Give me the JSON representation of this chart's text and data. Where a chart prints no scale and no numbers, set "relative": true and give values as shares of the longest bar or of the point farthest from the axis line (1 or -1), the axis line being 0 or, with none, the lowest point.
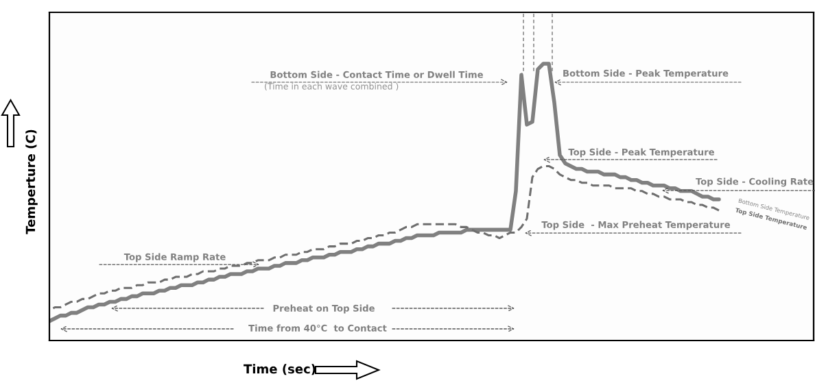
{
  "chart_data": {
    "type": "line",
    "relative": true,
    "xlabel": "Time (sec)",
    "ylabel": "Temperture (C)",
    "categories": [
      null,
      null,
      null,
      null,
      null,
      null,
      null,
      null,
      null,
      null,
      null,
      null,
      null,
      null,
      null,
      null,
      null,
      null,
      null,
      null,
      null,
      null,
      null,
      null,
      null,
      null,
      null,
      null,
      null,
      null,
      null,
      null,
      null,
      null,
      null,
      null,
      null,
      null,
      null,
      null,
      null,
      null,
      null,
      null,
      null,
      null,
      null,
      null,
      null,
      null,
      null,
      null,
      null,
      null,
      null,
      null,
      null,
      null,
      null,
      null,
      null,
      null,
      null,
      null,
      null,
      null,
      null,
      null,
      null,
      null,
      null,
      null,
      null,
      null,
      null,
      null,
      null,
      null,
      null,
      null,
      null,
      null,
      null,
      null,
      null,
      null,
      null,
      null,
      null,
      null,
      null,
      null,
      null,
      null,
      null,
      null,
      null,
      null,
      null,
      null,
      null,
      null,
      null,
      null,
      null,
      null,
      null,
      null,
      null,
      null,
      null,
      null,
      null,
      null,
      null,
      null,
      null,
      null,
      null,
      null,
      null,
      null,
      null,
      null,
      null,
      null,
      null,
      null,
      null,
      null,
      null,
      null,
      null,
      null,
      null,
      null,
      null,
      null,
      null,
      null
    ],
    "series": [
      {
        "name": "Bottom Side Temperature",
        "color": "#808080",
        "line_style": "solid",
        "values": [
          0.07,
          0.08,
          0.09,
          0.09,
          0.1,
          0.1,
          0.11,
          0.12,
          0.12,
          0.13,
          0.13,
          0.14,
          0.14,
          0.15,
          0.15,
          0.16,
          0.16,
          0.17,
          0.17,
          0.17,
          0.18,
          0.18,
          0.19,
          0.19,
          0.2,
          0.2,
          0.2,
          0.21,
          0.21,
          0.22,
          0.22,
          0.23,
          0.23,
          0.24,
          0.24,
          0.24,
          0.25,
          0.25,
          0.26,
          0.26,
          0.26,
          0.27,
          0.27,
          0.28,
          0.28,
          0.28,
          0.29,
          0.29,
          0.3,
          0.3,
          0.3,
          0.31,
          0.31,
          0.32,
          0.32,
          0.32,
          0.33,
          0.33,
          0.34,
          0.34,
          0.35,
          0.35,
          0.35,
          0.36,
          0.36,
          0.37,
          0.37,
          0.38,
          0.38,
          0.38,
          0.38,
          0.39,
          0.39,
          0.39,
          0.39,
          0.39,
          0.4,
          0.4,
          0.4,
          0.4,
          0.4,
          0.4,
          0.4,
          0.4,
          0.4,
          0.54,
          0.96,
          0.78,
          0.79,
          0.98,
          1.0,
          1.0,
          0.86,
          0.67,
          0.64,
          0.63,
          0.62,
          0.62,
          0.61,
          0.61,
          0.61,
          0.6,
          0.6,
          0.6,
          0.59,
          0.59,
          0.58,
          0.58,
          0.57,
          0.57,
          0.56,
          0.56,
          0.56,
          0.55,
          0.55,
          0.54,
          0.54,
          0.54,
          0.53,
          0.52,
          0.52,
          0.51,
          0.51,
          null,
          null,
          null,
          null,
          null,
          null,
          null,
          null,
          null,
          null,
          null,
          null,
          null,
          null,
          null,
          null,
          null
        ]
      },
      {
        "name": "Top Side Temperature",
        "color": "#6e6e6e",
        "line_style": "dashed",
        "values": [
          0.11,
          0.12,
          0.12,
          0.13,
          0.14,
          0.14,
          0.15,
          0.15,
          0.16,
          0.17,
          0.17,
          0.18,
          0.18,
          0.19,
          0.19,
          0.19,
          0.2,
          0.2,
          0.21,
          0.21,
          0.21,
          0.22,
          0.22,
          0.23,
          0.23,
          0.23,
          0.24,
          0.24,
          0.25,
          0.25,
          0.25,
          0.26,
          0.26,
          0.27,
          0.27,
          0.27,
          0.28,
          0.28,
          0.29,
          0.29,
          0.29,
          0.3,
          0.3,
          0.31,
          0.31,
          0.31,
          0.32,
          0.32,
          0.33,
          0.33,
          0.33,
          0.34,
          0.34,
          0.35,
          0.35,
          0.35,
          0.36,
          0.36,
          0.37,
          0.37,
          0.38,
          0.38,
          0.39,
          0.39,
          0.4,
          0.41,
          0.41,
          0.42,
          0.42,
          0.42,
          0.42,
          0.42,
          0.42,
          0.42,
          0.42,
          0.41,
          0.41,
          0.4,
          0.39,
          0.39,
          0.38,
          0.38,
          0.37,
          0.38,
          0.39,
          0.39,
          0.41,
          0.44,
          0.59,
          0.62,
          0.63,
          0.63,
          0.62,
          0.6,
          0.59,
          0.58,
          0.58,
          0.57,
          0.57,
          0.56,
          0.56,
          0.56,
          0.56,
          0.55,
          0.55,
          0.55,
          0.55,
          0.54,
          0.54,
          0.53,
          0.53,
          0.52,
          0.52,
          0.51,
          0.51,
          0.51,
          0.5,
          0.5,
          0.49,
          0.49,
          0.48,
          0.48,
          0.47,
          null,
          null,
          null,
          null,
          null,
          null,
          null,
          null,
          null,
          null,
          null,
          null,
          null,
          null,
          null,
          null,
          null
        ]
      }
    ],
    "annotations": [
      "Bottom Side - Contact Time or Dwell Time",
      "(Time in each wave combined )",
      "Bottom Side - Peak Temperature",
      "Top Side - Peak Temperature",
      "Top Side - Cooling Rate",
      "Top Side  - Max Preheat Temperature",
      "Top Side Ramp Rate",
      "Preheat on Top Side",
      "Time from 40°C  to Contact"
    ]
  }
}
